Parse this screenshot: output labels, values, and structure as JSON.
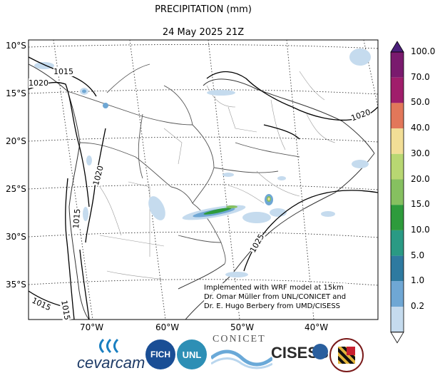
{
  "title": "PRECIPITATION (mm)",
  "subtitle": "24 May 2025 21Z",
  "lat_labels": [
    "10°S",
    "15°S",
    "20°S",
    "25°S",
    "30°S",
    "35°S"
  ],
  "lon_labels": [
    "70°W",
    "60°W",
    "50°W",
    "40°W"
  ],
  "isobar_labels": [
    "1015",
    "1020",
    "1020",
    "1020",
    "1015",
    "1025",
    "1015",
    "1015"
  ],
  "colorbar": {
    "labels": [
      "100.0",
      "70.0",
      "50.0",
      "40.0",
      "30.0",
      "20.0",
      "15.0",
      "10.0",
      "5.0",
      "1.0",
      "0.2"
    ],
    "colors": [
      "#7a1a6e",
      "#a01e6b",
      "#e2775a",
      "#f2de96",
      "#b8d772",
      "#86c060",
      "#2e9b3c",
      "#2a9a84",
      "#2e7aa0",
      "#6fa7d4",
      "#c5dbee"
    ],
    "top_arrow_color": "#4b1f7a"
  },
  "note": [
    "Implemented with WRF model at 15km",
    "Dr. Omar Müller from UNL/CONICET and",
    "Dr. E. Hugo Berbery from UMD/CISESS"
  ],
  "logos": {
    "cevarcam": "cevarcam",
    "fich": "FICH",
    "unl": "UNL",
    "conicet": "CONICET",
    "cisess": "CISESS"
  }
}
